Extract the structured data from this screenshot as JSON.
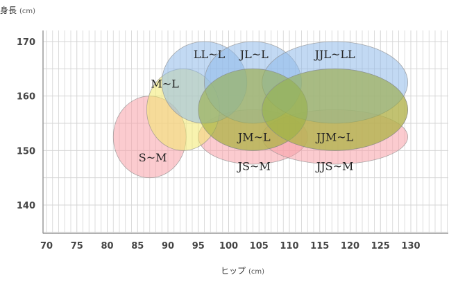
{
  "chart_data": {
    "type": "bubble-region",
    "xlabel": "ヒップ",
    "xunit": "(cm)",
    "ylabel": "身長",
    "yunit": "(cm)",
    "xlim": [
      69,
      136
    ],
    "ylim": [
      135,
      174
    ],
    "xticks": [
      70,
      75,
      80,
      85,
      90,
      95,
      100,
      105,
      110,
      115,
      120,
      125,
      130
    ],
    "yticks": [
      140,
      150,
      160,
      170
    ],
    "grid": true,
    "regions": [
      {
        "label": "S~M",
        "cx": 87,
        "cy": 152.5,
        "rx": 6,
        "ry": 7.5,
        "color": "#f7a1a8"
      },
      {
        "label": "JS~M",
        "cx": 104,
        "cy": 152.5,
        "rx": 9,
        "ry": 5,
        "color": "#f7a1a8"
      },
      {
        "label": "JJS~M",
        "cx": 117.5,
        "cy": 152.5,
        "rx": 12,
        "ry": 5,
        "color": "#f7a1a8"
      },
      {
        "label": "JM~L",
        "cx": 104,
        "cy": 157.5,
        "rx": 9,
        "ry": 7.5,
        "color": "#f3b450"
      },
      {
        "label": "JJM~L",
        "cx": 117.5,
        "cy": 157.5,
        "rx": 12,
        "ry": 7.5,
        "color": "#f3b450"
      },
      {
        "label": "M~L",
        "cx": 92.5,
        "cy": 157.5,
        "rx": 6,
        "ry": 7.5,
        "color": "#f2ea6e"
      },
      {
        "label": "LL~L",
        "cx": 96,
        "cy": 162.5,
        "rx": 7,
        "ry": 7.5,
        "color": "#8fb9ea"
      },
      {
        "label": "JL~L",
        "cx": 104,
        "cy": 162.5,
        "rx": 8,
        "ry": 7.5,
        "color": "#8fb9ea"
      },
      {
        "label": "JJL~LL",
        "cx": 117.5,
        "cy": 162.5,
        "rx": 12,
        "ry": 7.5,
        "color": "#8fb9ea"
      },
      {
        "label": "",
        "cx": 104,
        "cy": 157.5,
        "rx": 9,
        "ry": 7.5,
        "color": "#96b24a"
      },
      {
        "label": "",
        "cx": 117.5,
        "cy": 157.5,
        "rx": 12,
        "ry": 7.5,
        "color": "#96b24a"
      }
    ]
  }
}
